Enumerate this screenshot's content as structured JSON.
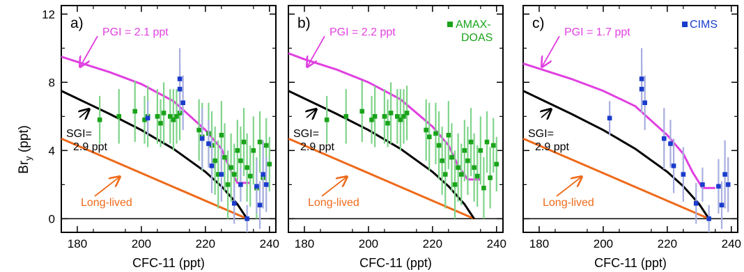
{
  "figure": {
    "ylabel_main": "Br",
    "ylabel_sub": "y",
    "ylabel_unit": " (ppt)",
    "sgi_label_line1": "SGI=",
    "sgi_label_line2": "2.9 ppt",
    "longlived_label": "Long-lived",
    "colors": {
      "pgi": "#e040e0",
      "sgi": "#000000",
      "longlived": "#ee6a1a",
      "amax": "#1aa31a",
      "amax_err": "#7fd48a",
      "cims": "#1a3ccc",
      "cims_err": "#a8aee0"
    }
  },
  "chart_data": [
    {
      "type": "scatter",
      "panel_label": "a)",
      "xlabel": "CFC-11 (ppt)",
      "ylabel": "Bry (ppt)",
      "xlim": [
        175,
        242
      ],
      "ylim": [
        -0.8,
        12.5
      ],
      "xticks": [
        180,
        200,
        220,
        240
      ],
      "yticks": [
        0,
        4,
        8,
        12
      ],
      "pgi_label": "PGI = 2.1 ppt",
      "legend": "",
      "lines": {
        "pgi": [
          [
            175,
            9.5
          ],
          [
            180,
            9.2
          ],
          [
            190,
            8.6
          ],
          [
            200,
            7.9
          ],
          [
            210,
            6.9
          ],
          [
            220,
            5.2
          ],
          [
            225,
            4.1
          ],
          [
            228,
            2.8
          ],
          [
            230,
            2.1
          ],
          [
            234,
            2.1
          ]
        ],
        "sgi": [
          [
            175,
            7.5
          ],
          [
            180,
            7.05
          ],
          [
            190,
            6.15
          ],
          [
            200,
            5.2
          ],
          [
            210,
            4.1
          ],
          [
            220,
            2.75
          ],
          [
            225,
            1.9
          ],
          [
            230,
            0.85
          ],
          [
            233,
            0.0
          ]
        ],
        "longlived": [
          [
            175,
            4.7
          ],
          [
            233,
            0.0
          ]
        ]
      },
      "series": [
        {
          "instrument": "AMAX",
          "points": [
            [
              187,
              5.8,
              1.4
            ],
            [
              193,
              6.0,
              1.6
            ],
            [
              198,
              6.3,
              1.8
            ],
            [
              201,
              5.8,
              1.4
            ],
            [
              202,
              6.0,
              1.8
            ],
            [
              205,
              6.0,
              1.6
            ],
            [
              206,
              5.6,
              1.4
            ],
            [
              207,
              6.2,
              1.8
            ],
            [
              209,
              6.0,
              1.6
            ],
            [
              210,
              5.8,
              1.8
            ],
            [
              211,
              6.0,
              1.6
            ],
            [
              212,
              6.2,
              1.6
            ],
            [
              218,
              5.2,
              1.8
            ],
            [
              219,
              4.8,
              2.0
            ],
            [
              221,
              5.0,
              1.8
            ],
            [
              222,
              4.3,
              2.0
            ],
            [
              223,
              3.4,
              2.0
            ],
            [
              224,
              2.6,
              2.0
            ],
            [
              225,
              4.9,
              2.0
            ],
            [
              226,
              3.6,
              2.0
            ],
            [
              227,
              2.0,
              2.0
            ],
            [
              228,
              3.0,
              2.0
            ],
            [
              229,
              2.6,
              1.8
            ],
            [
              230,
              4.0,
              1.8
            ],
            [
              231,
              3.4,
              2.0
            ],
            [
              232,
              4.5,
              2.0
            ],
            [
              233,
              3.0,
              2.0
            ],
            [
              234,
              2.5,
              1.8
            ],
            [
              235,
              4.0,
              2.0
            ],
            [
              236,
              1.8,
              1.8
            ],
            [
              237,
              4.5,
              1.8
            ],
            [
              238,
              2.4,
              1.8
            ],
            [
              239,
              4.3,
              1.6
            ],
            [
              240,
              3.2,
              1.6
            ]
          ]
        },
        {
          "instrument": "CIMS",
          "points": [
            [
              202,
              5.9,
              1.0
            ],
            [
              212,
              7.6,
              1.4
            ],
            [
              212,
              8.2,
              1.8
            ],
            [
              213,
              6.8,
              1.6
            ],
            [
              219,
              4.7,
              1.8
            ],
            [
              221,
              4.4,
              1.4
            ],
            [
              222,
              3.1,
              1.6
            ],
            [
              225,
              2.6,
              1.6
            ],
            [
              229,
              0.9,
              1.2
            ],
            [
              231,
              2.0,
              1.0
            ],
            [
              233,
              0.0,
              0.8
            ],
            [
              236,
              1.9,
              1.6
            ],
            [
              237,
              0.8,
              1.4
            ],
            [
              238,
              2.6,
              2.0
            ],
            [
              239,
              2.0,
              1.6
            ]
          ]
        }
      ]
    },
    {
      "type": "scatter",
      "panel_label": "b)",
      "xlabel": "CFC-11 (ppt)",
      "ylabel": "Bry (ppt)",
      "xlim": [
        175,
        242
      ],
      "ylim": [
        -0.8,
        12.5
      ],
      "xticks": [
        180,
        200,
        220,
        240
      ],
      "yticks": [
        0,
        4,
        8,
        12
      ],
      "pgi_label": "PGI = 2.2 ppt",
      "legend": "AMAX-DOAS",
      "legend_line1": "AMAX-",
      "legend_line2": "DOAS",
      "lines": {
        "pgi": [
          [
            175,
            9.7
          ],
          [
            180,
            9.35
          ],
          [
            190,
            8.75
          ],
          [
            200,
            8.0
          ],
          [
            210,
            7.0
          ],
          [
            220,
            5.4
          ],
          [
            225,
            4.3
          ],
          [
            228,
            3.1
          ],
          [
            231,
            2.3
          ],
          [
            235,
            2.3
          ]
        ],
        "sgi": [
          [
            175,
            7.5
          ],
          [
            180,
            7.05
          ],
          [
            190,
            6.15
          ],
          [
            200,
            5.2
          ],
          [
            210,
            4.1
          ],
          [
            220,
            2.75
          ],
          [
            225,
            1.9
          ],
          [
            230,
            0.85
          ],
          [
            233,
            0.0
          ]
        ],
        "longlived": [
          [
            175,
            4.7
          ],
          [
            233,
            0.0
          ]
        ]
      },
      "series": [
        {
          "instrument": "AMAX",
          "points": [
            [
              187,
              5.8,
              1.4
            ],
            [
              193,
              6.0,
              1.6
            ],
            [
              198,
              6.3,
              1.8
            ],
            [
              201,
              5.8,
              1.4
            ],
            [
              202,
              6.0,
              1.8
            ],
            [
              205,
              6.0,
              1.6
            ],
            [
              206,
              5.6,
              1.4
            ],
            [
              207,
              6.2,
              1.8
            ],
            [
              209,
              6.0,
              1.6
            ],
            [
              210,
              5.8,
              1.8
            ],
            [
              211,
              6.0,
              1.6
            ],
            [
              212,
              6.2,
              1.6
            ],
            [
              218,
              5.2,
              1.8
            ],
            [
              219,
              4.8,
              2.0
            ],
            [
              221,
              5.0,
              1.8
            ],
            [
              222,
              4.3,
              2.0
            ],
            [
              223,
              3.4,
              2.0
            ],
            [
              224,
              2.6,
              2.0
            ],
            [
              225,
              4.9,
              2.0
            ],
            [
              226,
              3.6,
              2.0
            ],
            [
              227,
              2.0,
              2.0
            ],
            [
              228,
              3.0,
              2.0
            ],
            [
              229,
              2.6,
              1.8
            ],
            [
              230,
              4.0,
              1.8
            ],
            [
              231,
              3.4,
              2.0
            ],
            [
              232,
              4.5,
              2.0
            ],
            [
              233,
              3.0,
              2.0
            ],
            [
              234,
              2.5,
              1.8
            ],
            [
              235,
              4.0,
              2.0
            ],
            [
              236,
              1.8,
              1.8
            ],
            [
              237,
              4.5,
              1.8
            ],
            [
              238,
              2.4,
              1.8
            ],
            [
              239,
              4.3,
              1.6
            ],
            [
              240,
              3.2,
              1.6
            ]
          ]
        }
      ]
    },
    {
      "type": "scatter",
      "panel_label": "c)",
      "xlabel": "CFC-11 (ppt)",
      "ylabel": "Bry (ppt)",
      "xlim": [
        175,
        242
      ],
      "ylim": [
        -0.8,
        12.5
      ],
      "xticks": [
        180,
        200,
        220,
        240
      ],
      "yticks": [
        0,
        4,
        8,
        12
      ],
      "pgi_label": "PGI = 1.7 ppt",
      "legend": "CIMS",
      "lines": {
        "pgi": [
          [
            175,
            9.1
          ],
          [
            180,
            8.8
          ],
          [
            190,
            8.2
          ],
          [
            200,
            7.5
          ],
          [
            210,
            6.6
          ],
          [
            220,
            4.9
          ],
          [
            225,
            3.8
          ],
          [
            228,
            2.7
          ],
          [
            231,
            1.8
          ],
          [
            235,
            1.8
          ]
        ],
        "sgi": [
          [
            175,
            7.5
          ],
          [
            180,
            7.05
          ],
          [
            190,
            6.15
          ],
          [
            200,
            5.2
          ],
          [
            210,
            4.1
          ],
          [
            220,
            2.75
          ],
          [
            225,
            1.9
          ],
          [
            230,
            0.85
          ],
          [
            233,
            0.0
          ]
        ],
        "longlived": [
          [
            175,
            4.7
          ],
          [
            233,
            0.0
          ]
        ]
      },
      "series": [
        {
          "instrument": "CIMS",
          "points": [
            [
              202,
              5.9,
              1.0
            ],
            [
              212,
              7.6,
              1.4
            ],
            [
              212,
              8.2,
              1.8
            ],
            [
              213,
              6.8,
              1.6
            ],
            [
              219,
              4.7,
              1.8
            ],
            [
              221,
              4.4,
              1.4
            ],
            [
              222,
              3.1,
              1.6
            ],
            [
              225,
              2.6,
              1.6
            ],
            [
              229,
              0.9,
              1.2
            ],
            [
              231,
              2.0,
              1.0
            ],
            [
              233,
              0.0,
              0.8
            ],
            [
              236,
              1.9,
              1.6
            ],
            [
              237,
              0.8,
              1.4
            ],
            [
              238,
              2.6,
              2.0
            ],
            [
              239,
              2.0,
              1.6
            ]
          ]
        }
      ]
    }
  ]
}
